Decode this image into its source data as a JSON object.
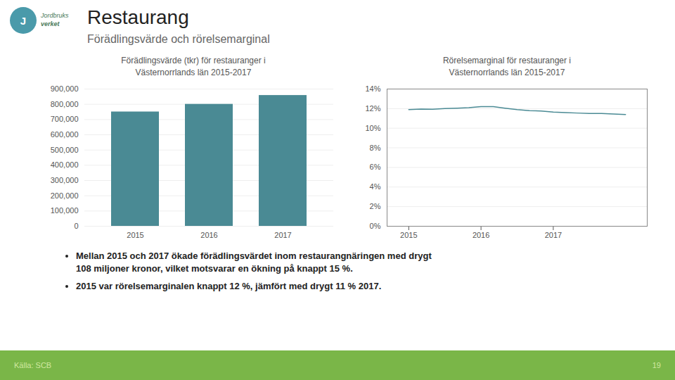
{
  "title": "Restaurang",
  "subtitle": "Förädlingsvärde och rörelsemarginal",
  "logo": [
    "J",
    "Jordbruks",
    "verket"
  ],
  "bullets": [
    [
      "Mellan 2015 och 2017 ökade förädlingsvärdet inom restaurangnäringen med drygt",
      "108 miljoner kronor, vilket motsvarar en ökning på knappt 15 %."
    ],
    [
      "2015 var rörelsemarginalen knappt 12 %, jämfört med drygt 11 % 2017."
    ]
  ],
  "footer": [
    "Källa: SCB",
    "19"
  ],
  "chart_data": [
    {
      "type": "bar",
      "title": "Förädlingsvärde (tkr) för restauranger i\nVästernorrlands län 2015-2017",
      "categories": [
        "2015",
        "2016",
        "2017"
      ],
      "values": [
        750000,
        800000,
        858000
      ],
      "color": "#4a8a94",
      "ylim": [
        0,
        900000
      ],
      "yticks": [
        0,
        {
          "value": 100000,
          "label": "100,000"
        },
        {
          "value": 200000,
          "label": "200,000"
        },
        {
          "value": 300000,
          "label": "300,000"
        },
        {
          "value": 400000,
          "label": "400,000"
        },
        {
          "value": 500000,
          "label": "500,000"
        },
        {
          "value": 600000,
          "label": "600,000"
        },
        {
          "value": 700000,
          "label": "700,000"
        },
        {
          "value": 800000,
          "label": "800,000"
        },
        {
          "value": 900000,
          "label": "900,000"
        }
      ],
      "grid": true
    },
    {
      "type": "line",
      "title": "Rörelsemarginal för restauranger i\nVästernorrlands län 2015-2017",
      "x": [
        2015.0,
        2015.17,
        2015.33,
        2015.5,
        2015.67,
        2015.83,
        2016.0,
        2016.17,
        2016.33,
        2016.5,
        2016.67,
        2016.83,
        2017.0,
        2017.17,
        2017.33,
        2017.5,
        2017.67,
        2017.83,
        2018.0
      ],
      "values": [
        11.9,
        11.95,
        11.93,
        12.0,
        12.05,
        12.1,
        12.2,
        12.2,
        12.05,
        11.9,
        11.8,
        11.75,
        11.65,
        11.6,
        11.55,
        11.5,
        11.5,
        11.45,
        11.4
      ],
      "color": "#4a8a94",
      "xlim": [
        2014.7,
        2018.3
      ],
      "xticks": [
        2015,
        2016,
        2017
      ],
      "ylim": [
        0,
        14
      ],
      "yticks": [
        {
          "value": 0,
          "label": "0%"
        },
        {
          "value": 2,
          "label": "2%"
        },
        {
          "value": 4,
          "label": "4%"
        },
        {
          "value": 6,
          "label": "6%"
        },
        {
          "value": 8,
          "label": "8%"
        },
        {
          "value": 10,
          "label": "10%"
        },
        {
          "value": 12,
          "label": "12%"
        },
        {
          "value": 14,
          "label": "14%"
        }
      ],
      "grid": true
    }
  ]
}
